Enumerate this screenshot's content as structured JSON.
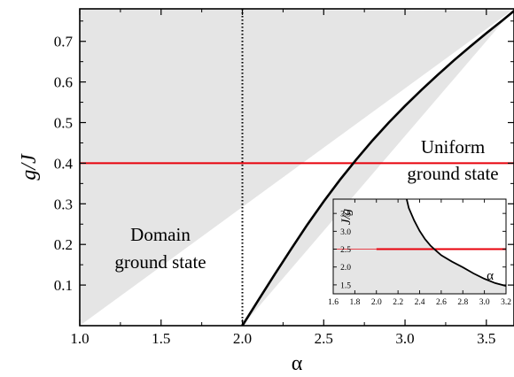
{
  "chart_data": [
    {
      "type": "line",
      "xlabel": "α",
      "ylabel": "g/J",
      "xlim": [
        1.0,
        3.67
      ],
      "ylim": [
        0.0,
        0.78
      ],
      "xticks": [
        "1.0",
        "1.5",
        "2.0",
        "2.5",
        "3.0",
        "3.5"
      ],
      "yticks": [
        "0.1",
        "0.2",
        "0.3",
        "0.4",
        "0.5",
        "0.6",
        "0.7"
      ],
      "regions": [
        {
          "label_lines": [
            "Domain",
            "ground state"
          ],
          "fill": "#e5e5e5"
        },
        {
          "label_lines": [
            "Uniform",
            "ground state"
          ],
          "fill": "#ffffff"
        }
      ],
      "boundary_curve": {
        "color": "#000000",
        "x": [
          2.0,
          2.1,
          2.2,
          2.3,
          2.4,
          2.5,
          2.6,
          2.7,
          2.8,
          2.9,
          3.0,
          3.1,
          3.2,
          3.3,
          3.4,
          3.5,
          3.6,
          3.67
        ],
        "y": [
          0.0,
          0.064,
          0.127,
          0.189,
          0.249,
          0.306,
          0.359,
          0.409,
          0.456,
          0.5,
          0.541,
          0.58,
          0.617,
          0.653,
          0.687,
          0.72,
          0.752,
          0.775
        ]
      },
      "vertical_dotted_line": {
        "x": 2.0,
        "color": "#000000"
      },
      "horizontal_line": {
        "y": 0.4,
        "color": "#e8000b"
      }
    },
    {
      "type": "line",
      "role": "inset",
      "xlabel": "α",
      "ylabel": "J/g",
      "xlim": [
        1.6,
        3.2
      ],
      "ylim": [
        1.25,
        3.9
      ],
      "xticks": [
        "1.6",
        "1.8",
        "2.0",
        "2.2",
        "2.4",
        "2.6",
        "2.8",
        "3.0",
        "3.2"
      ],
      "yticks": [
        "1.5",
        "2.0",
        "2.5",
        "3.0",
        "3.5"
      ],
      "boundary_curve": {
        "color": "#000000",
        "x": [
          2.28,
          2.3,
          2.35,
          2.4,
          2.45,
          2.5,
          2.55,
          2.6,
          2.7,
          2.8,
          2.9,
          3.0,
          3.1,
          3.2
        ],
        "y": [
          3.9,
          3.65,
          3.3,
          3.01,
          2.78,
          2.6,
          2.46,
          2.33,
          2.15,
          1.99,
          1.82,
          1.67,
          1.55,
          1.47
        ]
      },
      "vertical_dotted_line": {
        "x": 2.0,
        "color": "#000000"
      },
      "horizontal_line": {
        "y": 2.5,
        "color": "#e8000b"
      }
    }
  ]
}
